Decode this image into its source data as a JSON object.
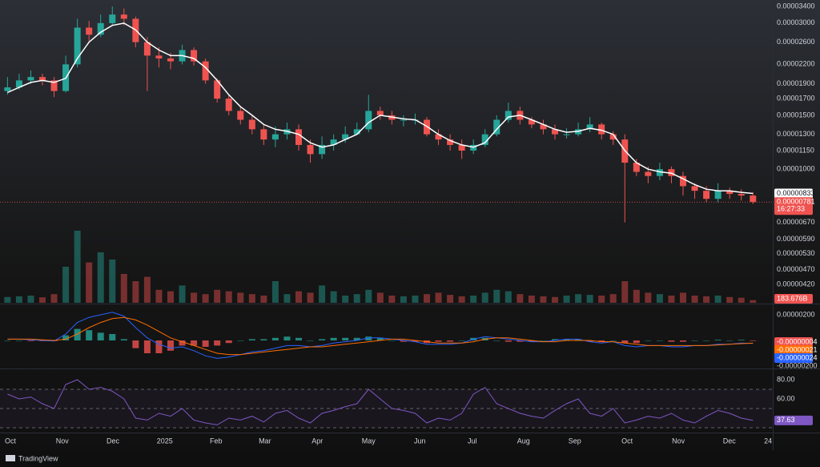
{
  "chart_data": [
    {
      "type": "candlestick",
      "x": [
        0,
        1,
        2,
        3,
        4,
        5,
        6,
        7,
        8,
        9,
        10,
        11,
        12,
        13,
        14,
        15,
        16,
        17,
        18,
        19,
        20,
        21,
        22,
        23,
        24,
        25,
        26,
        27,
        28,
        29,
        30,
        31,
        32,
        33,
        34,
        35,
        36,
        37,
        38,
        39,
        40,
        41,
        42,
        43,
        44,
        45,
        46,
        47,
        48,
        49,
        50,
        51,
        52,
        53,
        54,
        55,
        56,
        57,
        58,
        59,
        60,
        61,
        62,
        63,
        64
      ],
      "xlim": [
        -0.3,
        65.7
      ],
      "xticks": [
        {
          "value": 0.25,
          "label": "Oct"
        },
        {
          "value": 4.7,
          "label": "Nov"
        },
        {
          "value": 9.05,
          "label": "Dec"
        },
        {
          "value": 13.5,
          "label": "2025"
        },
        {
          "value": 17.9,
          "label": "Feb"
        },
        {
          "value": 22.1,
          "label": "Mar"
        },
        {
          "value": 26.6,
          "label": "Apr"
        },
        {
          "value": 31.0,
          "label": "May"
        },
        {
          "value": 35.4,
          "label": "Jun"
        },
        {
          "value": 39.9,
          "label": "Jul"
        },
        {
          "value": 44.3,
          "label": "Aug"
        },
        {
          "value": 48.7,
          "label": "Sep"
        },
        {
          "value": 53.2,
          "label": "Oct"
        },
        {
          "value": 57.6,
          "label": "Nov"
        },
        {
          "value": 61.97,
          "label": "Dec"
        },
        {
          "value": 65.3,
          "label": "24"
        }
      ],
      "open": [
        1.8e-05,
        1.85e-05,
        1.95e-05,
        2e-05,
        1.95e-05,
        1.8e-05,
        2.2e-05,
        2.9e-05,
        2.75e-05,
        3e-05,
        3.2e-05,
        3.1e-05,
        2.6e-05,
        2.35e-05,
        2.3e-05,
        2.25e-05,
        2.45e-05,
        2.25e-05,
        1.95e-05,
        1.7e-05,
        1.55e-05,
        1.45e-05,
        1.35e-05,
        1.25e-05,
        1.3e-05,
        1.35e-05,
        1.2e-05,
        1.12e-05,
        1.2e-05,
        1.25e-05,
        1.3e-05,
        1.35e-05,
        1.55e-05,
        1.5e-05,
        1.45e-05,
        1.45e-05,
        1.45e-05,
        1.3e-05,
        1.25e-05,
        1.2e-05,
        1.15e-05,
        1.2e-05,
        1.3e-05,
        1.45e-05,
        1.55e-05,
        1.45e-05,
        1.4e-05,
        1.35e-05,
        1.3e-05,
        1.3e-05,
        1.35e-05,
        1.4e-05,
        1.3e-05,
        1.25e-05,
        1.05e-05,
        9.8e-06,
        9.5e-06,
        1e-05,
        9.5e-06,
        8.8e-06,
        8.5e-06,
        8e-06,
        8.5e-06,
        8.3e-06,
        8.2e-06
      ],
      "high": [
        2e-05,
        2.05e-05,
        2.1e-05,
        2.05e-05,
        2e-05,
        2.35e-05,
        3.1e-05,
        3.05e-05,
        3.2e-05,
        3.4e-05,
        3.35e-05,
        3.15e-05,
        2.7e-05,
        2.5e-05,
        2.4e-05,
        2.55e-05,
        2.5e-05,
        2.3e-05,
        1.98e-05,
        1.75e-05,
        1.6e-05,
        1.5e-05,
        1.4e-05,
        1.38e-05,
        1.42e-05,
        1.4e-05,
        1.25e-05,
        1.28e-05,
        1.3e-05,
        1.38e-05,
        1.42e-05,
        1.75e-05,
        1.6e-05,
        1.55e-05,
        1.5e-05,
        1.52e-05,
        1.48e-05,
        1.35e-05,
        1.3e-05,
        1.25e-05,
        1.25e-05,
        1.35e-05,
        1.5e-05,
        1.65e-05,
        1.6e-05,
        1.48e-05,
        1.45e-05,
        1.4e-05,
        1.36e-05,
        1.42e-05,
        1.48e-05,
        1.42e-05,
        1.33e-05,
        1.3e-05,
        1.08e-05,
        1.02e-05,
        1.05e-05,
        1.02e-05,
        9.8e-06,
        9e-06,
        8.8e-06,
        9e-06,
        8.7e-06,
        8.6e-06,
        8.4e-06
      ],
      "low": [
        1.75e-05,
        1.82e-05,
        1.9e-05,
        1.88e-05,
        1.72e-05,
        1.78e-05,
        2.15e-05,
        2.6e-05,
        2.7e-05,
        2.95e-05,
        2.95e-05,
        2.5e-05,
        1.8e-05,
        2.15e-05,
        2.12e-05,
        2.2e-05,
        2.18e-05,
        1.9e-05,
        1.65e-05,
        1.5e-05,
        1.4e-05,
        1.3e-05,
        1.2e-05,
        1.18e-05,
        1.25e-05,
        1.15e-05,
        1.05e-05,
        1.08e-05,
        1.15e-05,
        1.22e-05,
        1.3e-05,
        1.32e-05,
        1.45e-05,
        1.4e-05,
        1.38e-05,
        1.4e-05,
        1.28e-05,
        1.2e-05,
        1.15e-05,
        1.08e-05,
        1.12e-05,
        1.18e-05,
        1.28e-05,
        1.42e-05,
        1.4e-05,
        1.36e-05,
        1.3e-05,
        1.25e-05,
        1.26e-05,
        1.28e-05,
        1.32e-05,
        1.25e-05,
        1.2e-05,
        6.7e-06,
        9.5e-06,
        9e-06,
        9.2e-06,
        9e-06,
        8.2e-06,
        8e-06,
        7.8e-06,
        7.8e-06,
        8e-06,
        7.9e-06,
        7.7e-06
      ],
      "close": [
        1.85e-05,
        1.95e-05,
        2e-05,
        1.95e-05,
        1.8e-05,
        2.2e-05,
        2.9e-05,
        2.75e-05,
        3e-05,
        3.2e-05,
        3.1e-05,
        2.6e-05,
        2.35e-05,
        2.3e-05,
        2.25e-05,
        2.45e-05,
        2.25e-05,
        1.95e-05,
        1.7e-05,
        1.55e-05,
        1.45e-05,
        1.35e-05,
        1.25e-05,
        1.3e-05,
        1.35e-05,
        1.2e-05,
        1.12e-05,
        1.2e-05,
        1.25e-05,
        1.3e-05,
        1.35e-05,
        1.55e-05,
        1.5e-05,
        1.45e-05,
        1.45e-05,
        1.45e-05,
        1.3e-05,
        1.25e-05,
        1.2e-05,
        1.15e-05,
        1.2e-05,
        1.3e-05,
        1.45e-05,
        1.55e-05,
        1.45e-05,
        1.4e-05,
        1.35e-05,
        1.3e-05,
        1.3e-05,
        1.35e-05,
        1.4e-05,
        1.3e-05,
        1.25e-05,
        1.05e-05,
        9.8e-06,
        9.5e-06,
        1e-05,
        9.5e-06,
        8.8e-06,
        8.5e-06,
        8e-06,
        8.5e-06,
        8.3e-06,
        8.2e-06,
        7.81e-06
      ],
      "close_last_label": "0.00000781",
      "countdown": "16:27:33",
      "up_color": "#26a69a",
      "down_color": "#ef5350",
      "ma": {
        "color": "#ffffff",
        "last_label": "0.00000833",
        "values": [
          1.78e-05,
          1.85e-05,
          1.92e-05,
          1.95e-05,
          1.92e-05,
          1.98e-05,
          2.3e-05,
          2.6e-05,
          2.8e-05,
          2.95e-05,
          3e-05,
          2.85e-05,
          2.6e-05,
          2.45e-05,
          2.35e-05,
          2.35e-05,
          2.3e-05,
          2.15e-05,
          1.95e-05,
          1.75e-05,
          1.6e-05,
          1.5e-05,
          1.4e-05,
          1.35e-05,
          1.33e-05,
          1.3e-05,
          1.22e-05,
          1.18e-05,
          1.2e-05,
          1.25e-05,
          1.3e-05,
          1.42e-05,
          1.5e-05,
          1.48e-05,
          1.46e-05,
          1.45e-05,
          1.38e-05,
          1.3e-05,
          1.24e-05,
          1.2e-05,
          1.18e-05,
          1.22e-05,
          1.35e-05,
          1.48e-05,
          1.5e-05,
          1.45e-05,
          1.4e-05,
          1.35e-05,
          1.32e-05,
          1.33e-05,
          1.36e-05,
          1.34e-05,
          1.3e-05,
          1.15e-05,
          1.05e-05,
          1e-05,
          9.8e-06,
          9.7e-06,
          9.3e-06,
          8.9e-06,
          8.6e-06,
          8.5e-06,
          8.5e-06,
          8.4e-06,
          8.33e-06
        ]
      },
      "volume": {
        "last_label": "183.676B",
        "values": [
          400,
          450,
          500,
          380,
          600,
          2500,
          5000,
          2800,
          3500,
          3000,
          2000,
          1500,
          1800,
          900,
          800,
          1200,
          700,
          600,
          900,
          800,
          700,
          600,
          500,
          1500,
          600,
          800,
          700,
          1200,
          800,
          500,
          600,
          900,
          700,
          500,
          450,
          500,
          600,
          700,
          550,
          450,
          500,
          700,
          900,
          800,
          600,
          500,
          450,
          400,
          500,
          600,
          550,
          500,
          600,
          1500,
          900,
          700,
          600,
          500,
          700,
          500,
          450,
          500,
          400,
          350,
          183.676
        ]
      },
      "log_scale": true,
      "ylim": [
        3.66e-06,
        3.57e-05
      ],
      "yticks": [
        {
          "value": 3.4e-05,
          "label": "0.00003400"
        },
        {
          "value": 3e-05,
          "label": "0.00003000"
        },
        {
          "value": 2.6e-05,
          "label": "0.00002600"
        },
        {
          "value": 2.2e-05,
          "label": "0.00002200"
        },
        {
          "value": 1.9e-05,
          "label": "0.00001900"
        },
        {
          "value": 1.7e-05,
          "label": "0.00001700"
        },
        {
          "value": 1.5e-05,
          "label": "0.00001500"
        },
        {
          "value": 1.3e-05,
          "label": "0.00001300"
        },
        {
          "value": 1.15e-05,
          "label": "0.00001150"
        },
        {
          "value": 1e-05,
          "label": "0.00001000"
        },
        {
          "value": 6.7e-06,
          "label": "0.00000670"
        },
        {
          "value": 5.9e-06,
          "label": "0.00000590"
        },
        {
          "value": 5.3e-06,
          "label": "0.00000530"
        },
        {
          "value": 4.7e-06,
          "label": "0.00000470"
        },
        {
          "value": 4.2e-06,
          "label": "0.00000420"
        }
      ]
    },
    {
      "type": "macd",
      "ylim": [
        -2.1875e-06,
        2.8125e-06
      ],
      "yticks": [
        {
          "value": 2e-06,
          "label": "0.00000200"
        },
        {
          "value": -2e-06,
          "label": "-0.00000200"
        }
      ],
      "histogram": {
        "up_color": "#26a69a",
        "down_color": "#ef5350",
        "last_label": "-0.00000004",
        "values": [
          0,
          0,
          -5e-08,
          -5e-08,
          -5e-08,
          4e-07,
          9e-07,
          8e-07,
          6e-07,
          5e-07,
          1e-07,
          -6e-07,
          -1e-06,
          -1e-06,
          -8e-07,
          -4e-07,
          -4e-07,
          -5e-07,
          -4e-07,
          -2e-07,
          0,
          1e-07,
          1e-07,
          2e-07,
          3e-07,
          2e-07,
          0,
          1e-07,
          2e-07,
          2e-07,
          2e-07,
          3e-07,
          2e-07,
          0,
          -1e-07,
          -1e-07,
          -2e-07,
          -1e-07,
          -1e-07,
          0,
          2e-07,
          2e-07,
          0,
          -1e-07,
          -1e-07,
          -1e-07,
          0,
          1e-07,
          1e-07,
          1e-07,
          -1e-07,
          -1e-07,
          0,
          -2e-07,
          -2e-07,
          0,
          0,
          -1e-07,
          -1e-07,
          0,
          0,
          5e-08,
          0,
          5e-08,
          -4e-08
        ]
      },
      "series": [
        {
          "color": "#2962ff",
          "last_label": "-0.00000024",
          "values": [
            1e-07,
            1e-07,
            5e-08,
            0,
            -5e-08,
            5e-07,
            1.4e-06,
            1.8e-06,
            2e-06,
            2.2e-06,
            1.9e-06,
            1e-06,
            2e-07,
            -3e-07,
            -6e-07,
            -5e-07,
            -8e-07,
            -1.2e-06,
            -1.4e-06,
            -1.3e-06,
            -1.1e-06,
            -9e-07,
            -8e-07,
            -6e-07,
            -4e-07,
            -4e-07,
            -5e-07,
            -4e-07,
            -2e-07,
            -1e-07,
            0,
            2e-07,
            2e-07,
            1e-07,
            0,
            -1e-07,
            -3e-07,
            -3e-07,
            -3e-07,
            -2e-07,
            1e-07,
            3e-07,
            2e-07,
            1e-07,
            0,
            -1e-07,
            -1e-07,
            0,
            1e-07,
            1e-07,
            -1e-07,
            -2e-07,
            -1e-07,
            -4e-07,
            -5e-07,
            -4e-07,
            -4e-07,
            -5e-07,
            -5e-07,
            -4e-07,
            -4e-07,
            -3e-07,
            -3e-07,
            -2e-07,
            -2.4e-07
          ]
        },
        {
          "color": "#ff6d00",
          "last_label": "-0.00000021",
          "values": [
            1e-07,
            1e-07,
            1e-07,
            5e-08,
            0,
            1e-07,
            5e-07,
            1e-06,
            1.4e-06,
            1.7e-06,
            1.8e-06,
            1.6e-06,
            1.2e-06,
            7e-07,
            2e-07,
            -1e-07,
            -4e-07,
            -7e-07,
            -1e-06,
            -1.1e-06,
            -1.1e-06,
            -1e-06,
            -9e-07,
            -8e-07,
            -7e-07,
            -6e-07,
            -5e-07,
            -5e-07,
            -4e-07,
            -3e-07,
            -2e-07,
            -1e-07,
            0,
            1e-07,
            1e-07,
            0,
            -1e-07,
            -2e-07,
            -2e-07,
            -2e-07,
            -1e-07,
            1e-07,
            2e-07,
            2e-07,
            1e-07,
            0,
            -1e-07,
            -1e-07,
            0,
            0,
            0,
            -1e-07,
            -1e-07,
            -2e-07,
            -3e-07,
            -4e-07,
            -4e-07,
            -4e-07,
            -4e-07,
            -4e-07,
            -4e-07,
            -3.5e-07,
            -3e-07,
            -2.5e-07,
            -2.1e-07
          ]
        }
      ]
    },
    {
      "type": "rsi",
      "color": "#7e57c2",
      "ylim": [
        25,
        90
      ],
      "yticks": [
        {
          "value": 80,
          "label": "80.00"
        },
        {
          "value": 60,
          "label": "60.00"
        }
      ],
      "bands": [
        70,
        50,
        30
      ],
      "last_label": "37.63",
      "values": [
        65,
        60,
        62,
        55,
        50,
        75,
        80,
        70,
        72,
        68,
        60,
        40,
        38,
        45,
        42,
        50,
        38,
        35,
        33,
        40,
        38,
        42,
        36,
        45,
        48,
        40,
        35,
        45,
        48,
        52,
        55,
        70,
        60,
        50,
        48,
        45,
        35,
        40,
        38,
        45,
        65,
        72,
        55,
        50,
        45,
        42,
        40,
        48,
        55,
        60,
        45,
        42,
        50,
        35,
        38,
        42,
        40,
        45,
        38,
        35,
        42,
        48,
        45,
        40,
        37.63
      ]
    }
  ],
  "branding": "TradingView"
}
